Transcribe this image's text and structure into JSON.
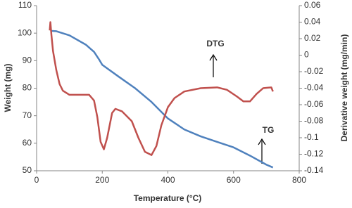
{
  "chart_data": {
    "type": "line",
    "x_label": "Temperature (°C)",
    "y_label": "Weight (mg)",
    "y2_label": "Derivative weight (mg/min)",
    "xlim": [
      0,
      800
    ],
    "xticks": [
      0,
      200,
      400,
      600,
      800
    ],
    "ylim": [
      50,
      110
    ],
    "yticks": [
      50,
      60,
      70,
      80,
      90,
      100,
      110
    ],
    "y2lim": [
      -0.14,
      0.06
    ],
    "y2ticks": [
      -0.14,
      -0.12,
      -0.1,
      -0.08,
      -0.06,
      -0.04,
      -0.02,
      0,
      0.02,
      0.04,
      0.06
    ],
    "grid": false,
    "annotations": [
      "DTG",
      "TG"
    ],
    "series": [
      {
        "name": "TG",
        "color": "#4f81bd",
        "x": [
          45,
          60,
          100,
          150,
          175,
          190,
          200,
          250,
          300,
          350,
          400,
          450,
          500,
          550,
          600,
          650,
          700,
          720
        ],
        "values": [
          100.8,
          100.7,
          99.2,
          95.8,
          93.2,
          90.5,
          88.5,
          84.2,
          80,
          75,
          69,
          65,
          62.5,
          60.5,
          58.5,
          55.5,
          52.2,
          51.2
        ]
      },
      {
        "name": "DTG",
        "color": "#c0504d",
        "axis": "y2",
        "x": [
          40,
          42,
          45,
          50,
          60,
          70,
          80,
          100,
          120,
          160,
          175,
          185,
          195,
          205,
          215,
          230,
          240,
          260,
          290,
          310,
          330,
          350,
          365,
          380,
          400,
          420,
          450,
          500,
          550,
          580,
          610,
          630,
          650,
          670,
          690,
          715,
          720
        ],
        "values": [
          0.03,
          0.04,
          0.025,
          0.005,
          -0.018,
          -0.035,
          -0.043,
          -0.048,
          -0.048,
          -0.048,
          -0.055,
          -0.075,
          -0.105,
          -0.114,
          -0.1,
          -0.07,
          -0.065,
          -0.068,
          -0.08,
          -0.1,
          -0.117,
          -0.121,
          -0.11,
          -0.085,
          -0.063,
          -0.052,
          -0.044,
          -0.04,
          -0.039,
          -0.042,
          -0.05,
          -0.056,
          -0.056,
          -0.047,
          -0.04,
          -0.039,
          -0.044
        ]
      }
    ]
  }
}
